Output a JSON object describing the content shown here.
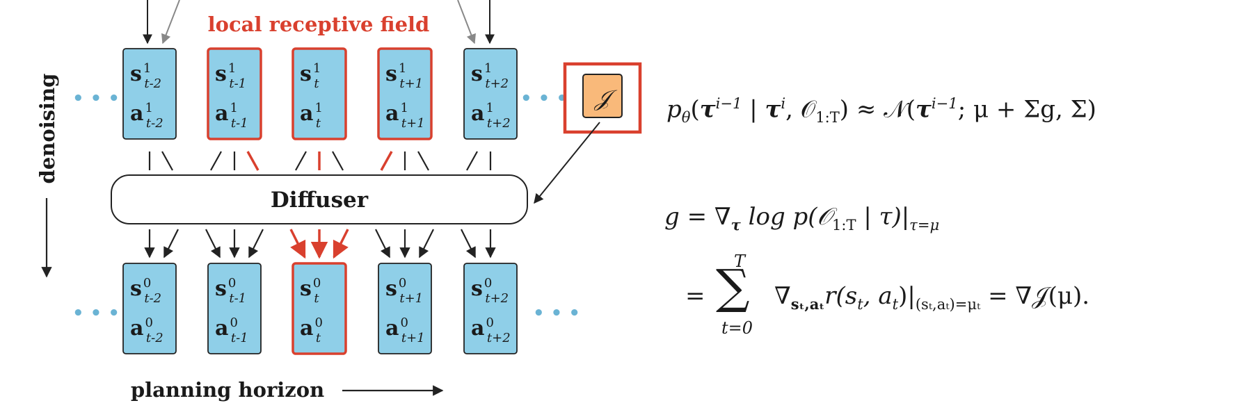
{
  "diagram": {
    "receptive_field_label": "local receptive field",
    "vertical_axis_label": "denoising",
    "horizontal_axis_label": "planning horizon",
    "center_block_label": "Diffuser",
    "guide_symbol": "𝒥",
    "ellipsis": "• • •",
    "colors": {
      "state_fill": "#8fcfe8",
      "guide_fill": "#f9b97a",
      "highlight": "#d9402e",
      "stroke": "#222222"
    },
    "top_row": [
      {
        "s": "s",
        "s_sup": "1",
        "sub": "t-2",
        "a": "a",
        "a_sup": "1",
        "highlighted": false
      },
      {
        "s": "s",
        "s_sup": "1",
        "sub": "t-1",
        "a": "a",
        "a_sup": "1",
        "highlighted": true
      },
      {
        "s": "s",
        "s_sup": "1",
        "sub": "t",
        "a": "a",
        "a_sup": "1",
        "highlighted": true
      },
      {
        "s": "s",
        "s_sup": "1",
        "sub": "t+1",
        "a": "a",
        "a_sup": "1",
        "highlighted": true
      },
      {
        "s": "s",
        "s_sup": "1",
        "sub": "t+2",
        "a": "a",
        "a_sup": "1",
        "highlighted": false
      }
    ],
    "bottom_row": [
      {
        "s": "s",
        "s_sup": "0",
        "sub": "t-2",
        "a": "a",
        "a_sup": "0",
        "highlighted": false
      },
      {
        "s": "s",
        "s_sup": "0",
        "sub": "t-1",
        "a": "a",
        "a_sup": "0",
        "highlighted": false
      },
      {
        "s": "s",
        "s_sup": "0",
        "sub": "t",
        "a": "a",
        "a_sup": "0",
        "highlighted": true
      },
      {
        "s": "s",
        "s_sup": "0",
        "sub": "t+1",
        "a": "a",
        "a_sup": "0",
        "highlighted": false
      },
      {
        "s": "s",
        "s_sup": "0",
        "sub": "t+2",
        "a": "a",
        "a_sup": "0",
        "highlighted": false
      }
    ]
  },
  "equations": {
    "eq1": {
      "p": "p",
      "theta": "θ",
      "open": "(",
      "tau": "τ",
      "i_minus_1": "i−1",
      "given": " | ",
      "i": "i",
      "comma_O": ", 𝒪",
      "O_sub": "1:T",
      "close_approx": ") ≈ 𝒩(",
      "rest": "; μ + Σg, Σ)"
    },
    "eq2": {
      "g_eq": "g = ∇",
      "grad_sub": "τ",
      "log_p": " log p(𝒪",
      "O_sub": "1:T",
      "given_tau": " | τ)|",
      "eval_sub": "τ=μ"
    },
    "eq3": {
      "eq": "=",
      "sum": "∑",
      "sum_top": "T",
      "sum_bottom": "t=0",
      "grad": "∇",
      "grad_sub": "sₜ,aₜ",
      "r": "r(s",
      "t1": "t",
      "comma_a": ", a",
      "t2": "t",
      "close": ")|",
      "eval_sub": "(sₜ,aₜ)=μₜ",
      "result": " = ∇𝒥(μ)."
    }
  }
}
